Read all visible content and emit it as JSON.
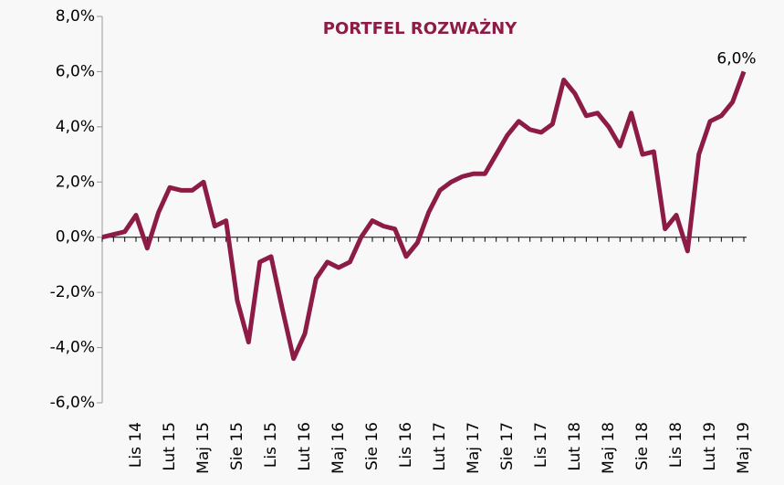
{
  "chart_data": {
    "type": "line",
    "title": "PORTFEL ROZWAŻNY",
    "categories": [
      null,
      null,
      null,
      "Lis 14",
      null,
      null,
      "Lut 15",
      null,
      null,
      "Maj 15",
      null,
      null,
      "Sie 15",
      null,
      null,
      "Lis 15",
      null,
      null,
      "Lut 16",
      null,
      null,
      "Maj 16",
      null,
      null,
      "Sie 16",
      null,
      null,
      "Lis 16",
      null,
      null,
      "Lut 17",
      null,
      null,
      "Maj 17",
      null,
      null,
      "Sie 17",
      null,
      null,
      "Lis 17",
      null,
      null,
      "Lut 18",
      null,
      null,
      "Maj 18",
      null,
      null,
      "Sie 18",
      null,
      null,
      "Lis 18",
      null,
      null,
      "Lut 19",
      null,
      null,
      "Maj 19"
    ],
    "series": [
      {
        "color": "#8c1c45",
        "values": [
          0.0,
          0.1,
          0.2,
          0.8,
          -0.4,
          0.9,
          1.8,
          1.7,
          1.7,
          2.0,
          0.4,
          0.6,
          -2.3,
          -3.8,
          -0.9,
          -0.7,
          -2.6,
          -4.4,
          -3.5,
          -1.5,
          -0.9,
          -1.1,
          -0.9,
          0.0,
          0.6,
          0.4,
          0.3,
          -0.7,
          -0.2,
          0.9,
          1.7,
          2.0,
          2.2,
          2.3,
          2.3,
          3.0,
          3.7,
          4.2,
          3.9,
          3.8,
          4.1,
          5.7,
          5.2,
          4.4,
          4.5,
          4.0,
          3.3,
          4.5,
          3.0,
          3.1,
          0.3,
          0.8,
          -0.5,
          3.0,
          4.2,
          4.4,
          4.9,
          6.0
        ],
        "value_labels": [
          null,
          null,
          null,
          null,
          null,
          null,
          null,
          null,
          null,
          null,
          null,
          null,
          null,
          null,
          null,
          null,
          null,
          null,
          null,
          null,
          null,
          null,
          null,
          null,
          null,
          null,
          null,
          null,
          null,
          null,
          null,
          null,
          null,
          null,
          null,
          null,
          null,
          null,
          null,
          null,
          null,
          null,
          null,
          null,
          null,
          null,
          null,
          null,
          null,
          null,
          null,
          null,
          null,
          null,
          null,
          null,
          null,
          "6,0%"
        ]
      }
    ],
    "ylim": [
      -6,
      8
    ],
    "yticks": [
      {
        "value": -6,
        "label": "-6,0%"
      },
      {
        "value": -4,
        "label": "-4,0%"
      },
      {
        "value": -2,
        "label": "-2,0%"
      },
      {
        "value": 0,
        "label": "0,0%"
      },
      {
        "value": 2,
        "label": "2,0%"
      },
      {
        "value": 4,
        "label": "4,0%"
      },
      {
        "value": 6,
        "label": "6,0%"
      },
      {
        "value": 8,
        "label": "8,0%"
      }
    ]
  }
}
